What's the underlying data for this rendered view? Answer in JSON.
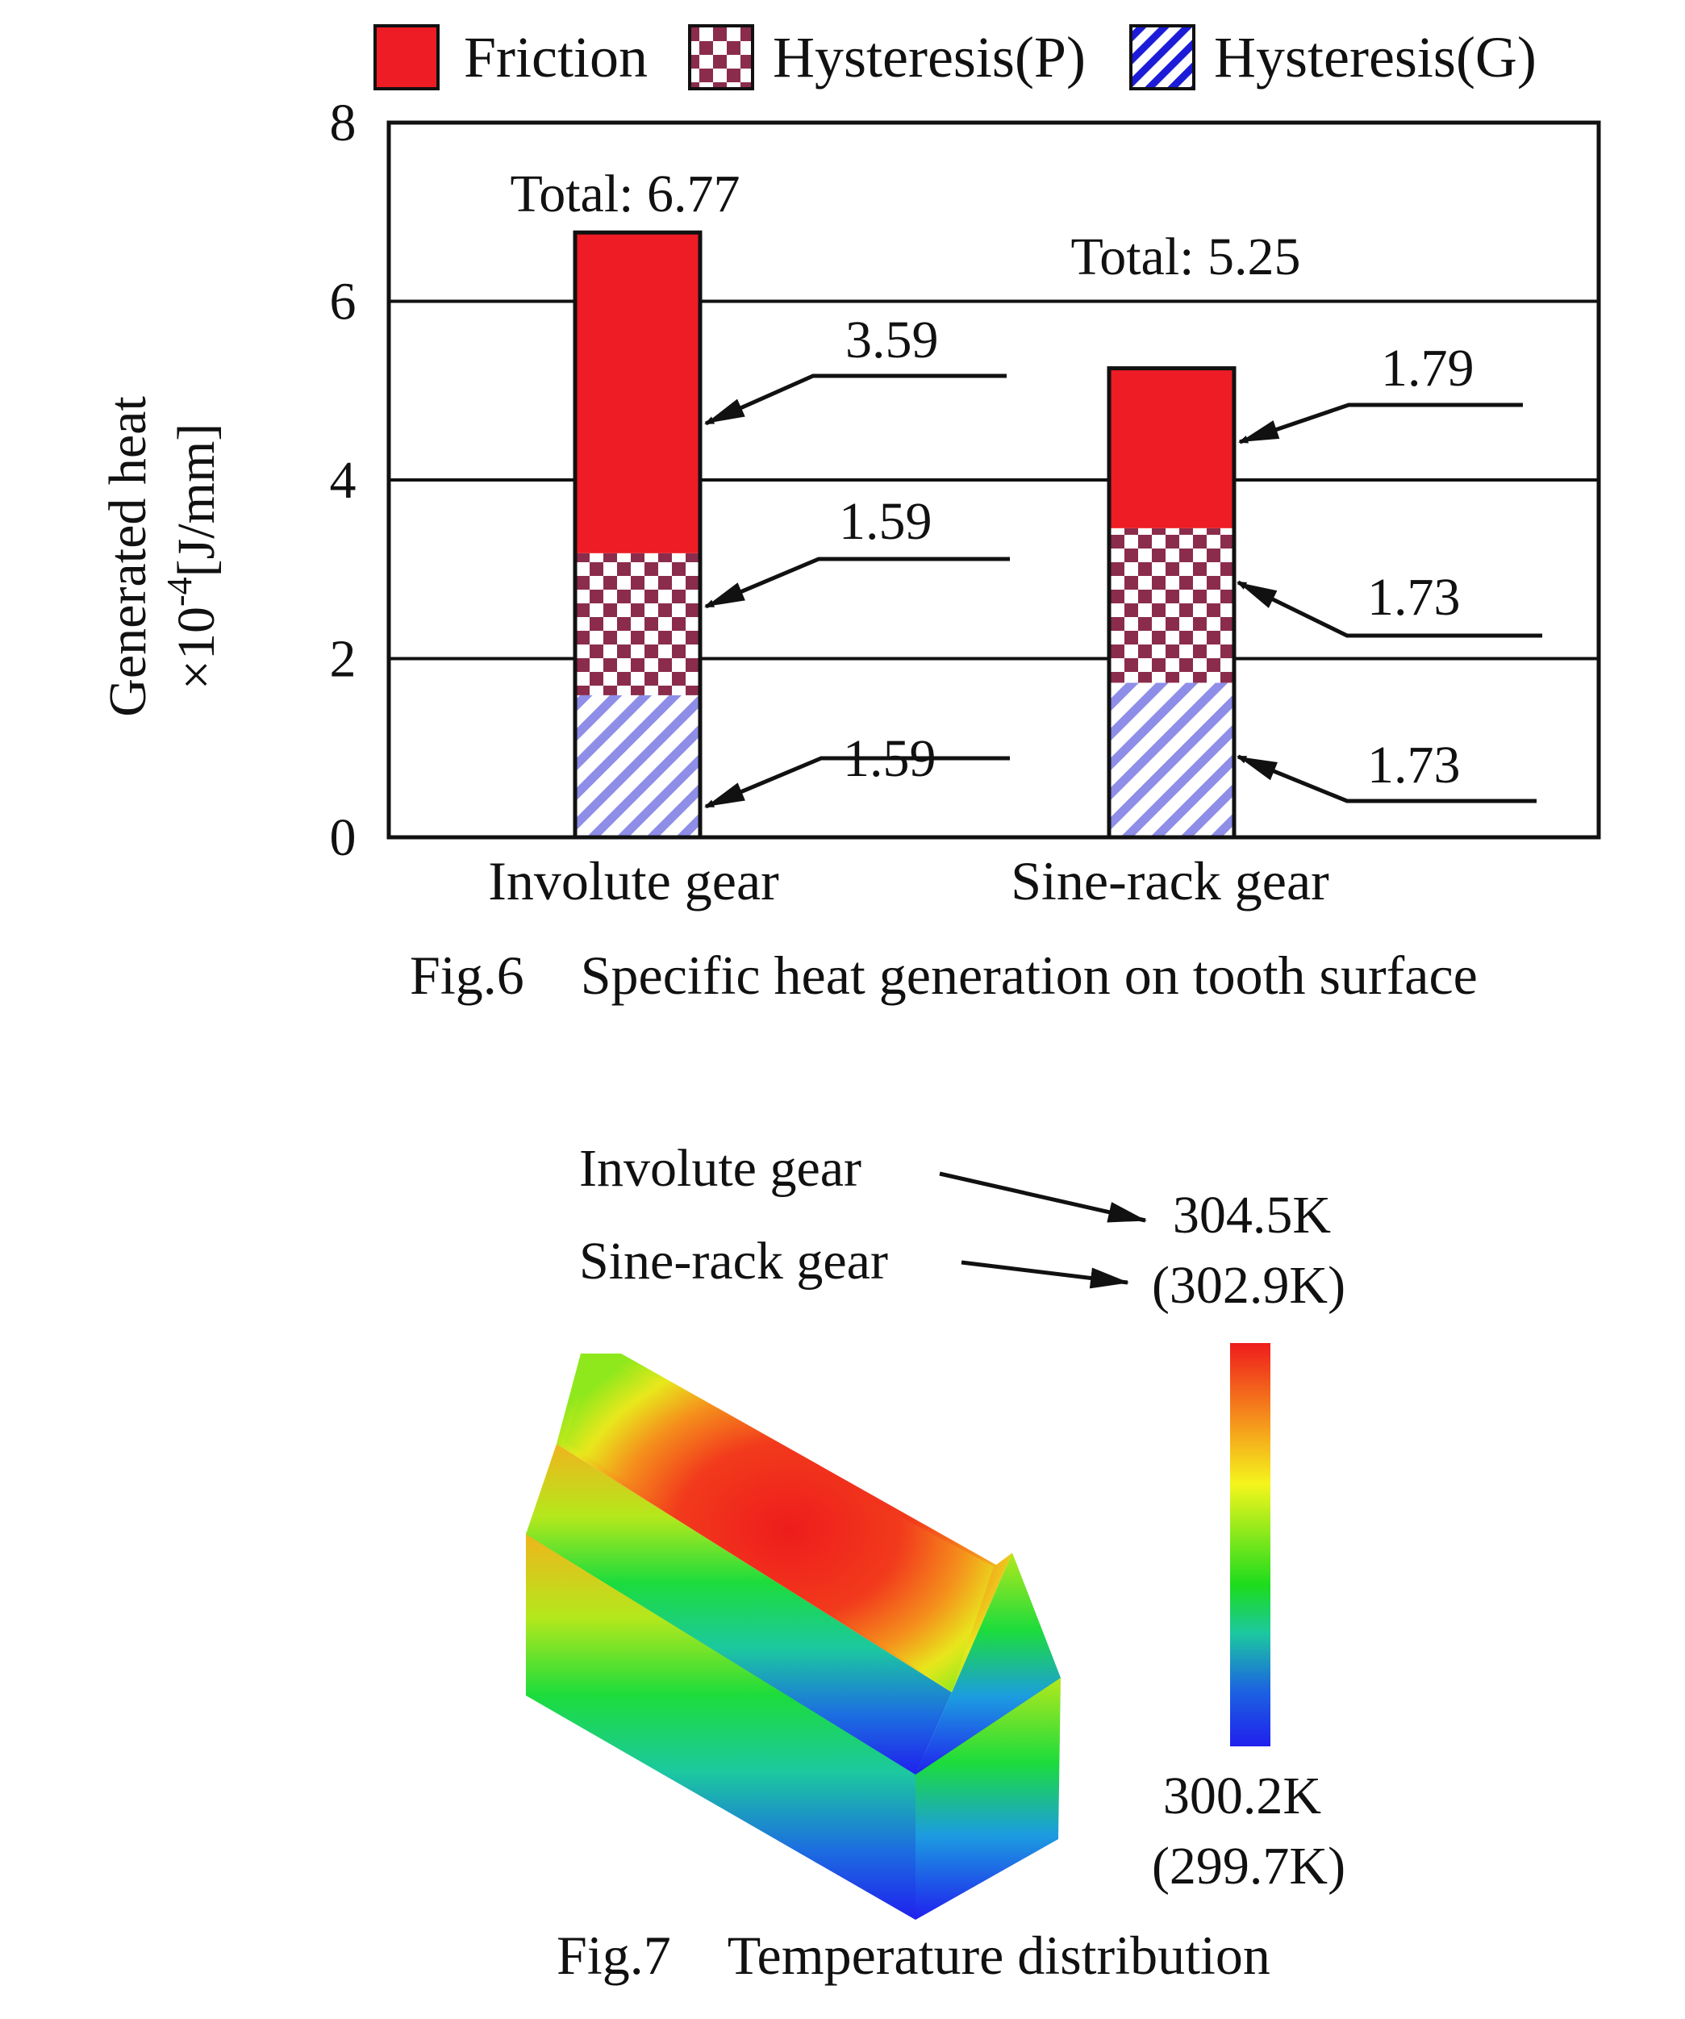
{
  "chart_data": [
    {
      "type": "bar",
      "stacked": true,
      "caption_number": "Fig.6",
      "caption_title": "Specific heat generation on tooth surface",
      "xlabel": "",
      "ylabel_line1": "Generated heat",
      "ylabel_line2": "×10",
      "ylabel_exp": "-4",
      "ylabel_unit": "[J/mm]",
      "ylim": [
        0,
        8
      ],
      "yticks": [
        "0",
        "2",
        "4",
        "6",
        "8"
      ],
      "grid": "horizontal",
      "legend_position": "top",
      "categories": [
        "Involute gear",
        "Sine-rack gear"
      ],
      "series": [
        {
          "name": "Hysteresis(G)",
          "values": [
            1.59,
            1.73
          ],
          "labels": [
            "1.59",
            "1.73"
          ],
          "pattern": "diagonal-stripes",
          "color": "#8e8ee8"
        },
        {
          "name": "Hysteresis(P)",
          "values": [
            1.59,
            1.73
          ],
          "labels": [
            "1.59",
            "1.73"
          ],
          "pattern": "checker",
          "color": "#8b2c4c"
        },
        {
          "name": "Friction",
          "values": [
            3.59,
            1.79
          ],
          "labels": [
            "3.59",
            "1.79"
          ],
          "pattern": "solid",
          "color": "#ee1c24"
        }
      ],
      "legend_order": [
        "Friction",
        "Hysteresis(P)",
        "Hysteresis(G)"
      ],
      "totals": [
        "Total: 6.77",
        "Total: 5.25"
      ]
    },
    {
      "type": "heatmap",
      "caption_number": "Fig.7",
      "caption_title": "Temperature distribution",
      "labels": [
        "Involute gear",
        "Sine-rack gear"
      ],
      "max_label_1": "304.5K",
      "max_label_2": "(302.9K)",
      "min_label_1": "300.2K",
      "min_label_2": "(299.7K)",
      "colorscale": [
        "#ee1c1c",
        "#f5a623",
        "#f5f51c",
        "#1cdc1c",
        "#1cc8a0",
        "#1c64e0",
        "#2020ee"
      ]
    }
  ]
}
